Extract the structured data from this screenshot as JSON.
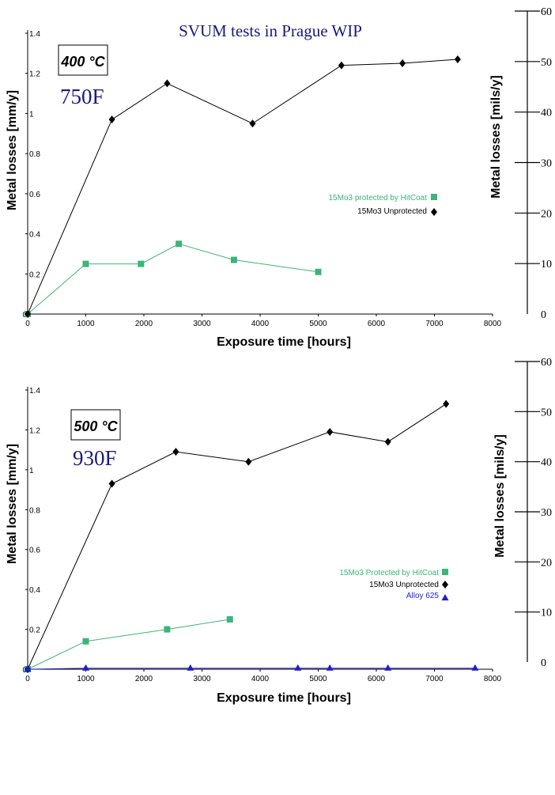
{
  "page_title": "SVUM tests in Prague WIP",
  "colors": {
    "title": "#1a1a7a",
    "axis": "#000000",
    "protected": "#3cb47a",
    "unprotected": "#000000",
    "alloy": "#1f1fd0"
  },
  "chart_data": [
    {
      "type": "line",
      "temp_c": "400 °C",
      "temp_f": "750F",
      "xlabel": "Exposure time [hours]",
      "ylabel": "Metal losses [mm/y]",
      "y2label": "Metal losses [mils/y]",
      "xlim": [
        0,
        8000
      ],
      "ylim": [
        0,
        1.4
      ],
      "y2lim": [
        0,
        60
      ],
      "x_ticks": [
        "0",
        "1000",
        "2000",
        "3000",
        "4000",
        "5000",
        "6000",
        "7000",
        "8000"
      ],
      "y_ticks": [
        "0",
        "0.2",
        "0.4",
        "0.6",
        "0.8",
        "1",
        "1.2",
        "1.4"
      ],
      "y2_ticks": [
        "0",
        "10",
        "20",
        "30",
        "40",
        "50",
        "60"
      ],
      "series": [
        {
          "name": "15Mo3 protected by HitCoat",
          "marker": "square",
          "color": "#3cb47a",
          "x": [
            0,
            1000,
            1950,
            2600,
            3550,
            5000
          ],
          "y": [
            0,
            0.25,
            0.25,
            0.35,
            0.27,
            0.21
          ]
        },
        {
          "name": "15Mo3 Unprotected",
          "marker": "diamond",
          "color": "#000000",
          "x": [
            0,
            1450,
            2400,
            3870,
            5400,
            6450,
            7400
          ],
          "y": [
            0,
            0.97,
            1.15,
            0.95,
            1.24,
            1.25,
            1.27
          ]
        }
      ]
    },
    {
      "type": "line",
      "temp_c": "500 °C",
      "temp_f": "930F",
      "xlabel": "Exposure time [hours]",
      "ylabel": "Metal losses [mm/y]",
      "y2label": "Metal losses [mils/y]",
      "xlim": [
        0,
        8000
      ],
      "ylim": [
        0,
        1.4
      ],
      "y2lim": [
        0,
        60
      ],
      "x_ticks": [
        "0",
        "1000",
        "2000",
        "3000",
        "4000",
        "5000",
        "6000",
        "7000",
        "8000"
      ],
      "y_ticks": [
        "0",
        "0.2",
        "0.4",
        "0.6",
        "0.8",
        "1",
        "1.2",
        "1.4"
      ],
      "y2_ticks": [
        "0",
        "10",
        "20",
        "30",
        "40",
        "50",
        "60"
      ],
      "series": [
        {
          "name": "15Mo3 Protected by HitCoat",
          "marker": "square",
          "color": "#3cb47a",
          "x": [
            0,
            1000,
            2400,
            3480
          ],
          "y": [
            0,
            0.14,
            0.2,
            0.25
          ]
        },
        {
          "name": "15Mo3 Unprotected",
          "marker": "diamond",
          "color": "#000000",
          "x": [
            0,
            1450,
            2550,
            3800,
            5200,
            6200,
            7200
          ],
          "y": [
            0,
            0.93,
            1.09,
            1.04,
            1.19,
            1.14,
            1.33
          ]
        },
        {
          "name": "Alloy 625",
          "marker": "triangle",
          "color": "#1f1fd0",
          "x": [
            0,
            1000,
            2800,
            4650,
            5200,
            6200,
            7700
          ],
          "y": [
            0,
            0.005,
            0.005,
            0.005,
            0.005,
            0.005,
            0.005
          ]
        }
      ]
    }
  ]
}
